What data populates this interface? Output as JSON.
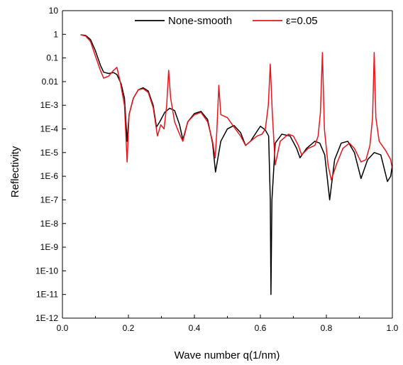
{
  "chart_data": {
    "type": "line",
    "title": "",
    "xlabel": "Wave number q(1/nm)",
    "ylabel": "Reflectivity",
    "xlim": [
      0.0,
      1.0
    ],
    "ylim": [
      1e-12,
      10
    ],
    "yscale": "log",
    "grid": false,
    "legend_position": "top",
    "x_ticks": [
      0.0,
      0.2,
      0.4,
      0.6,
      0.8,
      1.0
    ],
    "x_tick_labels": [
      "0.0",
      "0.2",
      "0.4",
      "0.6",
      "0.8",
      "1.0"
    ],
    "y_ticks": [
      10,
      1,
      0.1,
      0.01,
      0.001,
      0.0001,
      1e-05,
      1e-06,
      1e-07,
      1e-08,
      1e-09,
      1e-10,
      1e-11,
      1e-12
    ],
    "y_tick_labels": [
      "10",
      "1",
      "0.1",
      "0.01",
      "1E-3",
      "1E-4",
      "1E-5",
      "1E-6",
      "1E-7",
      "1E-8",
      "1E-9",
      "1E-10",
      "1E-11",
      "1E-12"
    ],
    "series": [
      {
        "name": "None-smooth",
        "color": "#000000",
        "points": [
          [
            0.055,
            0.95
          ],
          [
            0.07,
            0.9
          ],
          [
            0.085,
            0.6
          ],
          [
            0.1,
            0.2
          ],
          [
            0.115,
            0.05
          ],
          [
            0.125,
            0.025
          ],
          [
            0.14,
            0.022
          ],
          [
            0.155,
            0.024
          ],
          [
            0.165,
            0.02
          ],
          [
            0.178,
            0.008
          ],
          [
            0.188,
            0.002
          ],
          [
            0.196,
            3e-05
          ],
          [
            0.202,
            0.0004
          ],
          [
            0.215,
            0.002
          ],
          [
            0.23,
            0.0045
          ],
          [
            0.245,
            0.0055
          ],
          [
            0.26,
            0.004
          ],
          [
            0.275,
            0.001
          ],
          [
            0.285,
            0.00012
          ],
          [
            0.295,
            0.0002
          ],
          [
            0.31,
            0.0005
          ],
          [
            0.325,
            0.00075
          ],
          [
            0.34,
            0.0006
          ],
          [
            0.355,
            0.00015
          ],
          [
            0.365,
            3.5e-05
          ],
          [
            0.38,
            0.0002
          ],
          [
            0.4,
            0.00045
          ],
          [
            0.42,
            0.00055
          ],
          [
            0.44,
            0.00025
          ],
          [
            0.455,
            2.5e-05
          ],
          [
            0.464,
            1.5e-06
          ],
          [
            0.48,
            3e-05
          ],
          [
            0.5,
            0.0001
          ],
          [
            0.52,
            0.00014
          ],
          [
            0.54,
            7e-05
          ],
          [
            0.555,
            2e-05
          ],
          [
            0.57,
            3e-05
          ],
          [
            0.59,
            8e-05
          ],
          [
            0.6,
            0.00013
          ],
          [
            0.615,
            9e-05
          ],
          [
            0.625,
            5e-05
          ],
          [
            0.63,
            1e-07
          ],
          [
            0.632,
            1e-11
          ],
          [
            0.635,
            1e-07
          ],
          [
            0.645,
            2.5e-05
          ],
          [
            0.665,
            6e-05
          ],
          [
            0.69,
            5e-05
          ],
          [
            0.71,
            1.5e-05
          ],
          [
            0.72,
            6e-06
          ],
          [
            0.74,
            1.5e-05
          ],
          [
            0.765,
            3e-05
          ],
          [
            0.78,
            2.5e-05
          ],
          [
            0.795,
            8e-06
          ],
          [
            0.81,
            1e-07
          ],
          [
            0.825,
            5e-06
          ],
          [
            0.845,
            2.5e-05
          ],
          [
            0.865,
            3e-05
          ],
          [
            0.885,
            1e-05
          ],
          [
            0.905,
            8e-07
          ],
          [
            0.925,
            5e-06
          ],
          [
            0.945,
            1e-05
          ],
          [
            0.965,
            8e-06
          ],
          [
            0.985,
            6e-07
          ],
          [
            0.995,
            1e-06
          ],
          [
            1.0,
            3e-06
          ]
        ]
      },
      {
        "name": "ε=0.05",
        "color": "#e8141c",
        "points": [
          [
            0.055,
            0.95
          ],
          [
            0.07,
            0.85
          ],
          [
            0.085,
            0.5
          ],
          [
            0.1,
            0.12
          ],
          [
            0.115,
            0.03
          ],
          [
            0.125,
            0.014
          ],
          [
            0.14,
            0.017
          ],
          [
            0.155,
            0.03
          ],
          [
            0.165,
            0.04
          ],
          [
            0.175,
            0.01
          ],
          [
            0.188,
            0.001
          ],
          [
            0.196,
            4e-06
          ],
          [
            0.202,
            0.0004
          ],
          [
            0.215,
            0.002
          ],
          [
            0.23,
            0.0045
          ],
          [
            0.245,
            0.005
          ],
          [
            0.26,
            0.0035
          ],
          [
            0.275,
            0.0008
          ],
          [
            0.288,
            5e-05
          ],
          [
            0.298,
            0.00015
          ],
          [
            0.308,
            0.0001
          ],
          [
            0.316,
            0.001
          ],
          [
            0.322,
            0.03
          ],
          [
            0.328,
            0.002
          ],
          [
            0.34,
            0.0002
          ],
          [
            0.355,
            6e-05
          ],
          [
            0.365,
            3e-05
          ],
          [
            0.38,
            0.0002
          ],
          [
            0.4,
            0.0004
          ],
          [
            0.42,
            0.0005
          ],
          [
            0.44,
            0.0002
          ],
          [
            0.455,
            3e-05
          ],
          [
            0.463,
            6e-06
          ],
          [
            0.468,
            8e-05
          ],
          [
            0.474,
            0.007
          ],
          [
            0.48,
            0.0004
          ],
          [
            0.5,
            0.0003
          ],
          [
            0.52,
            0.00012
          ],
          [
            0.54,
            5e-05
          ],
          [
            0.555,
            2e-05
          ],
          [
            0.57,
            3e-05
          ],
          [
            0.59,
            5e-05
          ],
          [
            0.605,
            6e-05
          ],
          [
            0.615,
            0.0001
          ],
          [
            0.624,
            0.001
          ],
          [
            0.63,
            0.055
          ],
          [
            0.636,
            0.0005
          ],
          [
            0.645,
            3e-06
          ],
          [
            0.66,
            3e-05
          ],
          [
            0.685,
            6e-05
          ],
          [
            0.7,
            5e-05
          ],
          [
            0.715,
            2e-05
          ],
          [
            0.725,
            8e-06
          ],
          [
            0.745,
            1.5e-05
          ],
          [
            0.765,
            2e-05
          ],
          [
            0.775,
            5e-05
          ],
          [
            0.782,
            0.0005
          ],
          [
            0.788,
            0.17
          ],
          [
            0.794,
            0.0001
          ],
          [
            0.805,
            3e-06
          ],
          [
            0.815,
            7e-07
          ],
          [
            0.83,
            3e-06
          ],
          [
            0.85,
            1.5e-05
          ],
          [
            0.87,
            2.5e-05
          ],
          [
            0.885,
            1.5e-05
          ],
          [
            0.905,
            4e-06
          ],
          [
            0.92,
            5e-06
          ],
          [
            0.932,
            2e-05
          ],
          [
            0.94,
            0.0003
          ],
          [
            0.945,
            0.17
          ],
          [
            0.95,
            0.0003
          ],
          [
            0.96,
            3e-05
          ],
          [
            0.98,
            1.2e-05
          ],
          [
            0.995,
            5e-06
          ],
          [
            1.0,
            2e-06
          ]
        ]
      }
    ]
  }
}
